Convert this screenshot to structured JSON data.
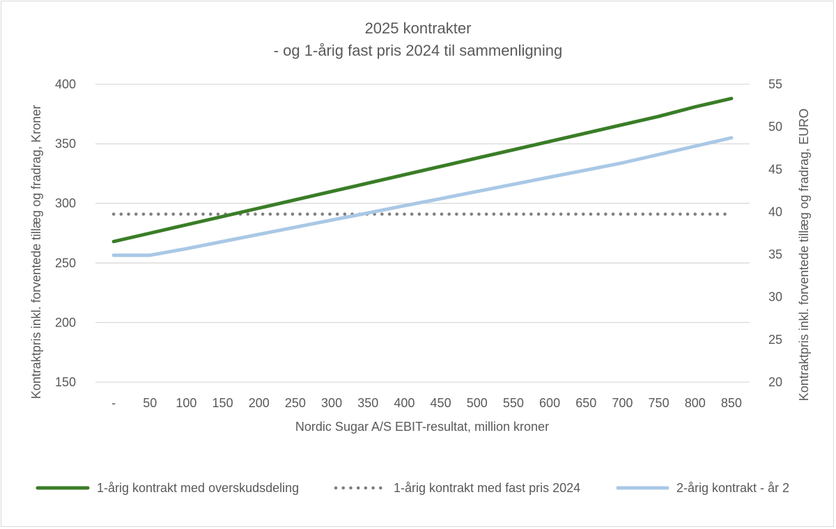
{
  "chart_data": {
    "type": "line",
    "title": "2025 kontrakter",
    "subtitle": "- og 1-årig fast pris 2024 til sammenligning",
    "xlabel": "Nordic Sugar A/S EBIT-resultat, million kroner",
    "ylabel": "Kontraktpris inkl. forventede tillæg og fradrag, Kroner",
    "y2label": "Kontraktpris inkl. forventede tillæg og fradrag, EURO",
    "categories": [
      "-",
      "50",
      "100",
      "150",
      "200",
      "250",
      "300",
      "350",
      "400",
      "450",
      "500",
      "550",
      "600",
      "650",
      "700",
      "750",
      "800",
      "850"
    ],
    "ylim": [
      150,
      400
    ],
    "yticks": [
      150,
      200,
      250,
      300,
      350,
      400
    ],
    "y2lim": [
      20,
      55
    ],
    "y2ticks": [
      20,
      25,
      30,
      35,
      40,
      45,
      50,
      55
    ],
    "grid": true,
    "legend_position": "bottom",
    "series": [
      {
        "name": "1-årig kontrakt med overskudsdeling",
        "color": "#3a7d27",
        "style": "solid",
        "values": [
          268,
          275,
          282,
          289,
          296,
          303,
          310,
          317,
          324,
          331,
          338,
          345,
          352,
          359,
          366,
          373,
          381,
          388
        ]
      },
      {
        "name": "1-årig kontrakt med fast pris 2024",
        "color": "#7f7f7f",
        "style": "dotted",
        "values": [
          291,
          291,
          291,
          291,
          291,
          291,
          291,
          291,
          291,
          291,
          291,
          291,
          291,
          291,
          291,
          291,
          291,
          291
        ]
      },
      {
        "name": "2-årig kontrakt - år 2",
        "color": "#a9c8e6",
        "style": "solid",
        "values": [
          256.5,
          256.5,
          262,
          268,
          274,
          280,
          286,
          292,
          298,
          304,
          310,
          316,
          322,
          328,
          334,
          341,
          348,
          355
        ]
      }
    ]
  }
}
